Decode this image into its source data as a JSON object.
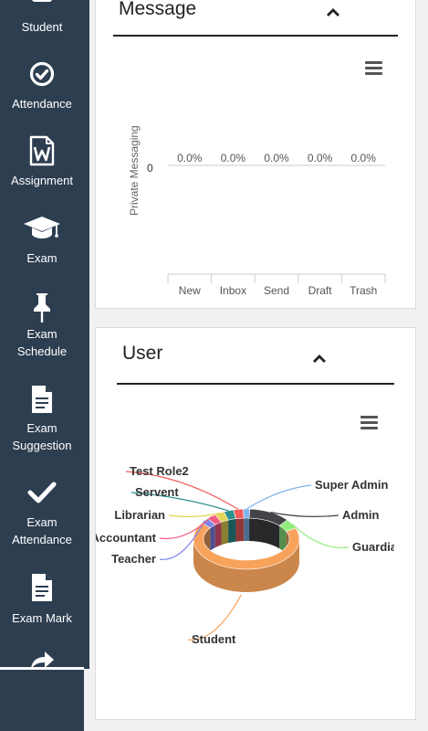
{
  "sidebar": {
    "items": [
      {
        "label": "Student",
        "icon": "student-icon"
      },
      {
        "label": "Attendance",
        "icon": "check-circle-icon"
      },
      {
        "label": "Assignment",
        "icon": "word-document-icon"
      },
      {
        "label": "Exam",
        "icon": "graduation-cap-icon"
      },
      {
        "label_line1": "Exam",
        "label_line2": "Schedule",
        "icon": "pushpin-icon"
      },
      {
        "label_line1": "Exam",
        "label_line2": "Suggestion",
        "icon": "document-icon"
      },
      {
        "label_line1": "Exam",
        "label_line2": "Attendance",
        "icon": "checkmark-icon"
      },
      {
        "label": "Exam Mark",
        "icon": "document-icon"
      },
      {
        "label": "",
        "icon": "share-arrow-icon"
      }
    ]
  },
  "message_card": {
    "title": "Message",
    "chart": {
      "type": "bar",
      "ylabel": "Private Messaging",
      "y_tick": "0",
      "categories": [
        "New",
        "Inbox",
        "Send",
        "Draft",
        "Trash"
      ],
      "value_labels": [
        "0.0%",
        "0.0%",
        "0.0%",
        "0.0%",
        "0.0%"
      ]
    }
  },
  "user_card": {
    "title": "User",
    "chart": {
      "type": "pie",
      "labels_left": [
        "Test Role2",
        "Servent",
        "Librarian",
        "Accountant",
        "Teacher"
      ],
      "labels_right": [
        "Super Admin",
        "Admin",
        "Guardian"
      ],
      "label_bottom": "Student"
    }
  },
  "chart_data": [
    {
      "type": "bar",
      "title": "",
      "ylabel": "Private Messaging",
      "categories": [
        "New",
        "Inbox",
        "Send",
        "Draft",
        "Trash"
      ],
      "values": [
        0,
        0,
        0,
        0,
        0
      ],
      "data_labels": [
        "0.0%",
        "0.0%",
        "0.0%",
        "0.0%",
        "0.0%"
      ]
    },
    {
      "type": "pie",
      "donut": true,
      "three_d": true,
      "slices": [
        {
          "name": "Super Admin",
          "percent": 2,
          "color": "#7cb5ec"
        },
        {
          "name": "Admin",
          "percent": 13,
          "color": "#434348"
        },
        {
          "name": "Guardian",
          "percent": 5,
          "color": "#90ed7d"
        },
        {
          "name": "Student",
          "percent": 65,
          "color": "#f7a35c"
        },
        {
          "name": "Teacher",
          "percent": 3,
          "color": "#8085e9"
        },
        {
          "name": "Accountant",
          "percent": 3,
          "color": "#f15c80"
        },
        {
          "name": "Librarian",
          "percent": 3,
          "color": "#e4d354"
        },
        {
          "name": "Servent",
          "percent": 3,
          "color": "#2b908f"
        },
        {
          "name": "Test Role2",
          "percent": 3,
          "color": "#f45b5b"
        }
      ]
    }
  ]
}
